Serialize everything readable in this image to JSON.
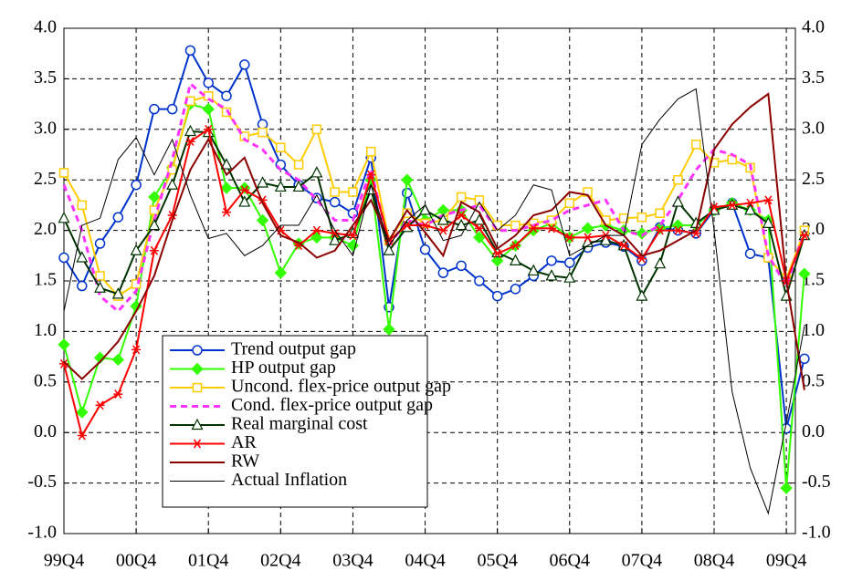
{
  "chart_data": {
    "type": "line",
    "categories": [
      "99Q4",
      null,
      null,
      null,
      "00Q4",
      null,
      null,
      null,
      "01Q4",
      null,
      null,
      null,
      "02Q4",
      null,
      null,
      null,
      "03Q4",
      null,
      null,
      null,
      "04Q4",
      null,
      null,
      null,
      "05Q4",
      null,
      null,
      null,
      "06Q4",
      null,
      null,
      null,
      "07Q4",
      null,
      null,
      null,
      "08Q4",
      null,
      null,
      null,
      "09Q4",
      null
    ],
    "ylim": [
      -1,
      4
    ],
    "yticks": [
      {
        "value": -1,
        "label": "-1.0"
      },
      {
        "value": -0.5,
        "label": "-0.5"
      },
      {
        "value": 0,
        "label": "0.0"
      },
      {
        "value": 0.5,
        "label": "0.5"
      },
      {
        "value": 1,
        "label": "1.0"
      },
      {
        "value": 1.5,
        "label": "1.5"
      },
      {
        "value": 2,
        "label": "2.0"
      },
      {
        "value": 2.5,
        "label": "2.5"
      },
      {
        "value": 3,
        "label": "3.0"
      },
      {
        "value": 3.5,
        "label": "3.5"
      },
      {
        "value": 4,
        "label": "4.0"
      }
    ],
    "y2lim": [
      -1,
      4
    ],
    "y2ticks": [
      {
        "value": -1,
        "label": "-1.0"
      },
      {
        "value": -0.5,
        "label": "-0.5"
      },
      {
        "value": 0,
        "label": "0.0"
      },
      {
        "value": 0.5,
        "label": "0.5"
      },
      {
        "value": 1,
        "label": "1.0"
      },
      {
        "value": 1.5,
        "label": "1.5"
      },
      {
        "value": 2,
        "label": "2.0"
      },
      {
        "value": 2.5,
        "label": "2.5"
      },
      {
        "value": 3,
        "label": "3.0"
      },
      {
        "value": 3.5,
        "label": "3.5"
      },
      {
        "value": 4,
        "label": "4.0"
      }
    ],
    "grid": true,
    "series": [
      {
        "name": "Trend output gap",
        "color": "#0033cc",
        "marker": "circle",
        "values": [
          1.73,
          1.45,
          1.87,
          2.13,
          2.45,
          3.2,
          3.2,
          3.78,
          3.46,
          3.33,
          3.64,
          3.05,
          2.65,
          2.45,
          2.32,
          2.28,
          2.17,
          2.72,
          1.24,
          2.37,
          1.81,
          1.58,
          1.65,
          1.5,
          1.35,
          1.42,
          1.55,
          1.7,
          1.68,
          1.83,
          1.88,
          1.84,
          1.7,
          2.03,
          2.0,
          1.97,
          2.2,
          2.27,
          1.77,
          1.73,
          0.04,
          0.73
        ]
      },
      {
        "name": "HP output gap",
        "color": "#33ff00",
        "marker": "diamond",
        "values": [
          0.87,
          0.2,
          0.74,
          0.72,
          1.25,
          2.33,
          2.62,
          3.25,
          3.2,
          2.42,
          2.42,
          2.1,
          1.58,
          1.87,
          1.93,
          1.93,
          1.85,
          2.5,
          1.02,
          2.5,
          2.1,
          2.2,
          2.2,
          1.93,
          1.7,
          1.85,
          2.0,
          2.07,
          1.93,
          2.02,
          2.05,
          2.0,
          1.97,
          2.02,
          2.05,
          2.05,
          2.2,
          2.27,
          2.2,
          2.1,
          -0.55,
          1.57
        ]
      },
      {
        "name": "Uncond. flex-price output gap",
        "color": "#ffcc00",
        "marker": "square",
        "values": [
          2.57,
          2.25,
          1.55,
          1.35,
          1.47,
          2.2,
          2.6,
          3.28,
          3.33,
          3.17,
          2.93,
          2.97,
          2.82,
          2.65,
          3.0,
          2.38,
          2.38,
          2.78,
          1.9,
          2.17,
          2.07,
          2.1,
          2.33,
          2.3,
          2.05,
          2.05,
          2.07,
          2.1,
          2.27,
          2.38,
          2.1,
          2.12,
          2.13,
          2.17,
          2.5,
          2.85,
          2.67,
          2.7,
          2.62,
          1.73,
          1.52,
          2.0
        ]
      },
      {
        "name": "Cond. flex-price output gap",
        "color": "#ff33ff",
        "dashed": true,
        "values": [
          2.45,
          2.0,
          1.35,
          1.2,
          1.4,
          2.1,
          2.7,
          3.45,
          3.3,
          3.2,
          2.9,
          2.8,
          2.6,
          2.5,
          2.3,
          2.1,
          2.1,
          2.6,
          1.85,
          2.1,
          2.05,
          2.15,
          2.2,
          2.25,
          2.0,
          2.0,
          2.05,
          2.1,
          2.2,
          2.25,
          2.3,
          2.0,
          1.95,
          2.05,
          2.3,
          2.6,
          2.8,
          2.75,
          2.65,
          1.75,
          1.45,
          2.0
        ]
      },
      {
        "name": "Real marginal cost",
        "color": "#003300",
        "marker": "triangle",
        "values": [
          2.12,
          1.73,
          1.43,
          1.37,
          1.8,
          2.05,
          2.45,
          2.98,
          2.97,
          2.65,
          2.28,
          2.47,
          2.43,
          2.43,
          2.57,
          1.9,
          1.97,
          2.4,
          1.8,
          2.03,
          2.2,
          2.1,
          2.05,
          2.1,
          1.78,
          1.7,
          1.6,
          1.55,
          1.53,
          1.88,
          1.9,
          1.85,
          1.35,
          1.67,
          2.28,
          2.07,
          2.2,
          2.25,
          2.2,
          2.07,
          1.35,
          1.95
        ]
      },
      {
        "name": "AR",
        "color": "#ff0000",
        "marker": "star",
        "values": [
          0.68,
          -0.03,
          0.27,
          0.38,
          0.82,
          1.8,
          2.15,
          2.88,
          3.0,
          2.18,
          2.4,
          2.3,
          2.0,
          1.85,
          2.0,
          1.97,
          1.95,
          2.55,
          1.9,
          2.05,
          2.05,
          2.0,
          2.15,
          2.02,
          1.77,
          1.85,
          2.02,
          2.02,
          1.93,
          1.93,
          1.95,
          1.85,
          1.72,
          2.0,
          2.0,
          1.97,
          2.23,
          2.25,
          2.27,
          2.3,
          1.5,
          1.95
        ]
      },
      {
        "name": "RW",
        "color": "#8b0000",
        "values": [
          0.7,
          0.53,
          0.7,
          0.9,
          1.2,
          1.55,
          2.1,
          2.6,
          2.9,
          2.55,
          2.72,
          2.27,
          1.95,
          1.88,
          1.73,
          1.8,
          2.05,
          2.3,
          1.9,
          2.2,
          1.98,
          1.75,
          2.28,
          2.18,
          1.82,
          1.95,
          2.15,
          2.2,
          2.38,
          2.35,
          2.05,
          1.95,
          1.75,
          1.8,
          1.9,
          2.0,
          2.8,
          3.05,
          3.22,
          3.35,
          1.5,
          0.42
        ]
      },
      {
        "name": "Actual Inflation",
        "color": "#000000",
        "thin": true,
        "values": [
          1.2,
          2.05,
          2.12,
          2.7,
          2.92,
          2.55,
          2.9,
          2.35,
          1.92,
          1.97,
          1.75,
          1.85,
          2.05,
          2.05,
          2.35,
          2.0,
          1.75,
          2.45,
          1.85,
          2.1,
          2.25,
          1.9,
          1.95,
          2.28,
          2.0,
          2.15,
          2.45,
          2.4,
          1.75,
          1.85,
          1.95,
          1.95,
          2.85,
          3.1,
          3.3,
          3.4,
          2.0,
          0.4,
          -0.35,
          -0.8,
          0.1,
          1.05
        ]
      }
    ]
  }
}
